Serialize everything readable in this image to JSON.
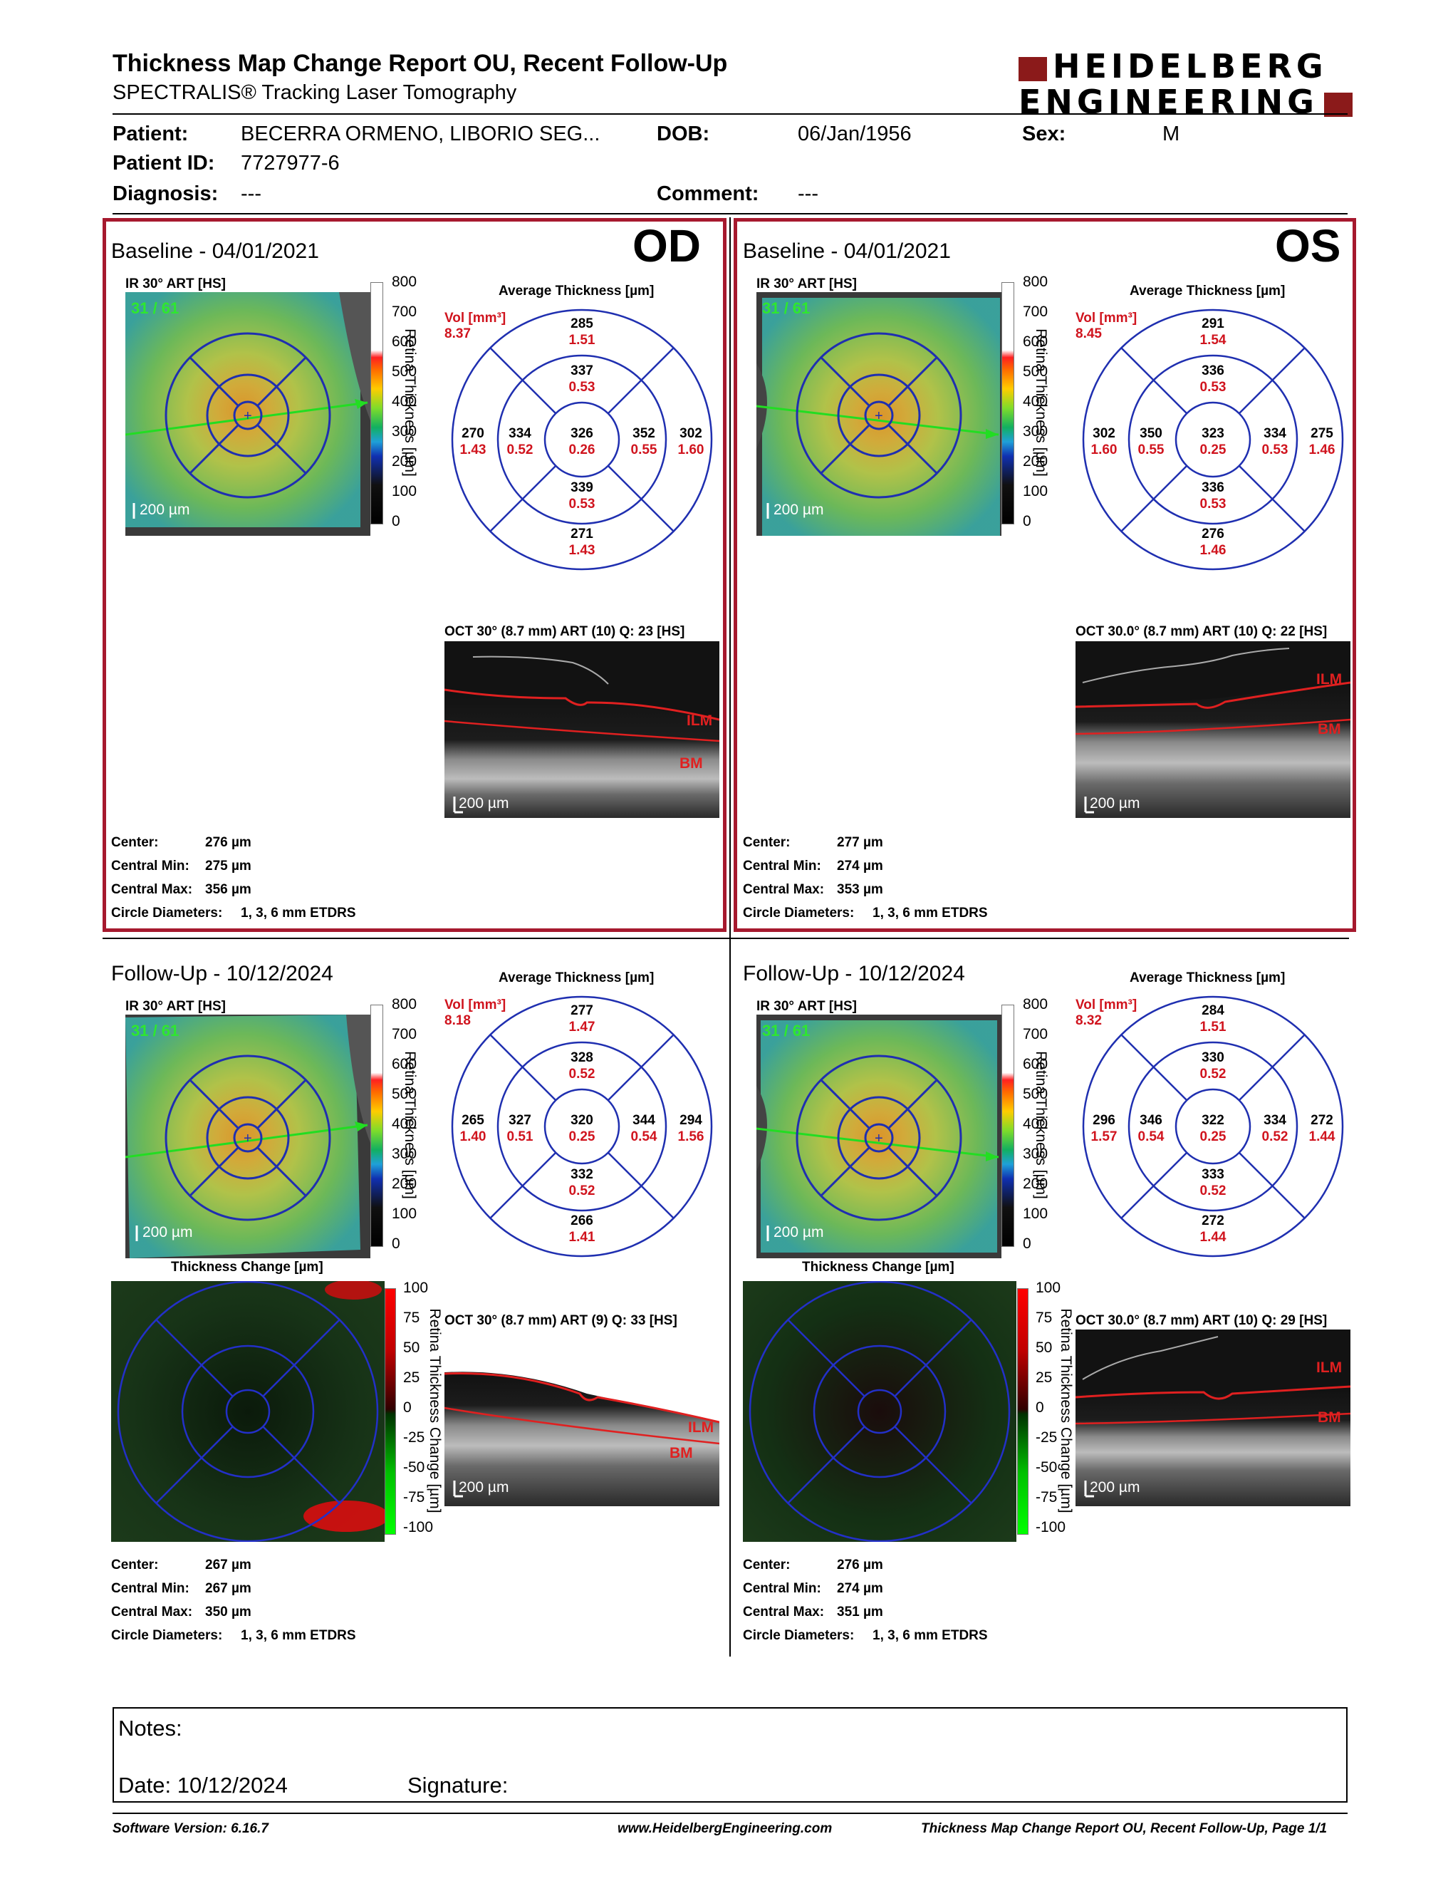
{
  "header": {
    "title": "Thickness Map Change Report OU, Recent Follow-Up",
    "subtitle": "SPECTRALIS® Tracking Laser Tomography",
    "logo_line1": "HEIDELBERG",
    "logo_line2": "ENGINEERING"
  },
  "patient": {
    "name_label": "Patient:",
    "name": "BECERRA ORMENO, LIBORIO SEG...",
    "dob_label": "DOB:",
    "dob": "06/Jan/1956",
    "sex_label": "Sex:",
    "sex": "M",
    "id_label": "Patient ID:",
    "id": "7727977-6",
    "diagnosis_label": "Diagnosis:",
    "diagnosis": "---",
    "comment_label": "Comment:",
    "comment": "---"
  },
  "panels": {
    "od_base": {
      "title": "Baseline - 04/01/2021",
      "eye": "OD",
      "ir_label": "IR 30° ART [HS]",
      "ir_counter": "31 / 61",
      "scale_bar": "200 µm",
      "avg_title": "Average Thickness [µm]",
      "vol_label": "Vol [mm³]",
      "vol": "8.37",
      "etdrs": {
        "outer_top": [
          "285",
          "1.51"
        ],
        "outer_left": [
          "270",
          "1.43"
        ],
        "outer_right": [
          "302",
          "1.60"
        ],
        "outer_bottom": [
          "271",
          "1.43"
        ],
        "inner_top": [
          "337",
          "0.53"
        ],
        "inner_left": [
          "334",
          "0.52"
        ],
        "inner_right": [
          "352",
          "0.55"
        ],
        "inner_bottom": [
          "339",
          "0.53"
        ],
        "center": [
          "326",
          "0.26"
        ]
      },
      "oct_label": "OCT 30° (8.7 mm) ART (10) Q: 23 [HS]",
      "oct_scale": "200 µm",
      "ilm": "ILM",
      "bm": "BM",
      "stats": {
        "center_label": "Center:",
        "center": "276 µm",
        "min_label": "Central Min:",
        "min": "275 µm",
        "max_label": "Central Max:",
        "max": "356 µm",
        "circle_label": "Circle Diameters:",
        "circle": "1, 3, 6 mm ETDRS"
      }
    },
    "os_base": {
      "title": "Baseline - 04/01/2021",
      "eye": "OS",
      "ir_label": "IR 30° ART [HS]",
      "ir_counter": "31 / 61",
      "scale_bar": "200 µm",
      "avg_title": "Average Thickness [µm]",
      "vol_label": "Vol [mm³]",
      "vol": "8.45",
      "etdrs": {
        "outer_top": [
          "291",
          "1.54"
        ],
        "outer_left": [
          "302",
          "1.60"
        ],
        "outer_right": [
          "275",
          "1.46"
        ],
        "outer_bottom": [
          "276",
          "1.46"
        ],
        "inner_top": [
          "336",
          "0.53"
        ],
        "inner_left": [
          "350",
          "0.55"
        ],
        "inner_right": [
          "334",
          "0.53"
        ],
        "inner_bottom": [
          "336",
          "0.53"
        ],
        "center": [
          "323",
          "0.25"
        ]
      },
      "oct_label": "OCT 30.0° (8.7 mm) ART (10) Q: 22 [HS]",
      "oct_scale": "200 µm",
      "ilm": "ILM",
      "bm": "BM",
      "stats": {
        "center_label": "Center:",
        "center": "277 µm",
        "min_label": "Central Min:",
        "min": "274 µm",
        "max_label": "Central Max:",
        "max": "353 µm",
        "circle_label": "Circle Diameters:",
        "circle": "1, 3, 6 mm ETDRS"
      }
    },
    "od_fu": {
      "title": "Follow-Up - 10/12/2024",
      "ir_label": "IR 30° ART [HS]",
      "ir_counter": "31 / 61",
      "scale_bar": "200 µm",
      "avg_title": "Average Thickness [µm]",
      "vol_label": "Vol [mm³]",
      "vol": "8.18",
      "etdrs": {
        "outer_top": [
          "277",
          "1.47"
        ],
        "outer_left": [
          "265",
          "1.40"
        ],
        "outer_right": [
          "294",
          "1.56"
        ],
        "outer_bottom": [
          "266",
          "1.41"
        ],
        "inner_top": [
          "328",
          "0.52"
        ],
        "inner_left": [
          "327",
          "0.51"
        ],
        "inner_right": [
          "344",
          "0.54"
        ],
        "inner_bottom": [
          "332",
          "0.52"
        ],
        "center": [
          "320",
          "0.25"
        ]
      },
      "change_title": "Thickness Change [µm]",
      "oct_label": "OCT 30° (8.7 mm) ART (9) Q: 33 [HS]",
      "oct_scale": "200 µm",
      "ilm": "ILM",
      "bm": "BM",
      "stats": {
        "center_label": "Center:",
        "center": "267 µm",
        "min_label": "Central Min:",
        "min": "267 µm",
        "max_label": "Central Max:",
        "max": "350 µm",
        "circle_label": "Circle Diameters:",
        "circle": "1, 3, 6 mm ETDRS"
      }
    },
    "os_fu": {
      "title": "Follow-Up - 10/12/2024",
      "ir_label": "IR 30° ART [HS]",
      "ir_counter": "31 / 61",
      "scale_bar": "200 µm",
      "avg_title": "Average Thickness [µm]",
      "vol_label": "Vol [mm³]",
      "vol": "8.32",
      "etdrs": {
        "outer_top": [
          "284",
          "1.51"
        ],
        "outer_left": [
          "296",
          "1.57"
        ],
        "outer_right": [
          "272",
          "1.44"
        ],
        "outer_bottom": [
          "272",
          "1.44"
        ],
        "inner_top": [
          "330",
          "0.52"
        ],
        "inner_left": [
          "346",
          "0.54"
        ],
        "inner_right": [
          "334",
          "0.52"
        ],
        "inner_bottom": [
          "333",
          "0.52"
        ],
        "center": [
          "322",
          "0.25"
        ]
      },
      "change_title": "Thickness Change [µm]",
      "oct_label": "OCT 30.0° (8.7 mm) ART (10) Q: 29 [HS]",
      "oct_scale": "200 µm",
      "ilm": "ILM",
      "bm": "BM",
      "stats": {
        "center_label": "Center:",
        "center": "276 µm",
        "min_label": "Central Min:",
        "min": "274 µm",
        "max_label": "Central Max:",
        "max": "351 µm",
        "circle_label": "Circle Diameters:",
        "circle": "1, 3, 6 mm ETDRS"
      }
    }
  },
  "thickness_scale": {
    "label": "Retina Thickness [µm]",
    "ticks": [
      "800",
      "700",
      "600",
      "500",
      "400",
      "300",
      "200",
      "100",
      "0"
    ]
  },
  "change_scale": {
    "label": "Retina Thickness Change [µm]",
    "ticks": [
      "100",
      "75",
      "50",
      "25",
      "0",
      "-25",
      "-50",
      "-75",
      "-100"
    ]
  },
  "notes": {
    "notes_label": "Notes:",
    "date_label": "Date: 10/12/2024",
    "signature_label": "Signature:"
  },
  "footer": {
    "software": "Software Version: 6.16.7",
    "website": "www.HeidelbergEngineering.com",
    "page": "Thickness Map Change Report OU, Recent Follow-Up, Page 1/1"
  },
  "colors": {
    "frame_red": "#a6192e",
    "logo_red": "#8b1a1a",
    "etdrs_blue": "#1f2fb0",
    "value_red": "#d0141e"
  }
}
